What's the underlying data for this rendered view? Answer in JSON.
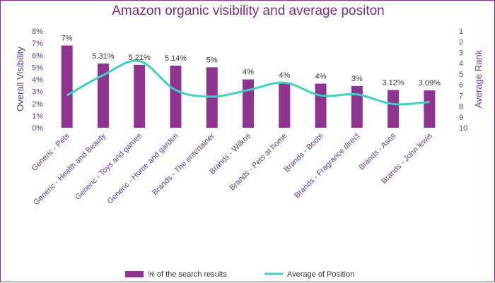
{
  "chart_data": {
    "type": "bar",
    "title": "Amazon organic visibility and average positon",
    "ylabel": "Overall Visibility",
    "y2label": "Average Rank",
    "ylim": [
      0,
      8
    ],
    "y2lim": [
      1,
      10
    ],
    "y_ticks": [
      "0%",
      "1%",
      "2%",
      "3%",
      "4%",
      "5%",
      "6%",
      "7%",
      "8%"
    ],
    "y2_ticks": [
      "1",
      "2",
      "3",
      "4",
      "5",
      "6",
      "7",
      "8",
      "9",
      "10"
    ],
    "categories": [
      "Generic - Pets",
      "Generic - Health and Beauty",
      "Generic - Toys and games",
      "Generic - Home and garden",
      "Brands - The entertainer",
      "Brands - Wilkos",
      "Brands - Pets at home",
      "Brands - Boots",
      "Brands - Fragrance direct",
      "Brands - Asos",
      "Brands - John lewis"
    ],
    "series": [
      {
        "name": "% of the search results",
        "type": "bar",
        "axis": "left",
        "values": [
          6.8,
          5.31,
          5.21,
          5.14,
          5.0,
          4.0,
          3.75,
          3.65,
          3.45,
          3.12,
          3.09
        ],
        "labels": [
          "7%",
          "5.31%",
          "5.21%",
          "5.14%",
          "5%",
          "4%",
          "4%",
          "4%",
          "3%",
          "3.12%",
          "3.09%"
        ],
        "color": "#8e3390"
      },
      {
        "name": "Average of Position",
        "type": "line",
        "axis": "right",
        "values": [
          7.0,
          5.1,
          3.8,
          6.5,
          7.1,
          6.5,
          5.8,
          7.0,
          6.9,
          7.8,
          7.6
        ],
        "color": "#3ed0c0"
      }
    ],
    "grid": false,
    "legend_position": "bottom"
  }
}
